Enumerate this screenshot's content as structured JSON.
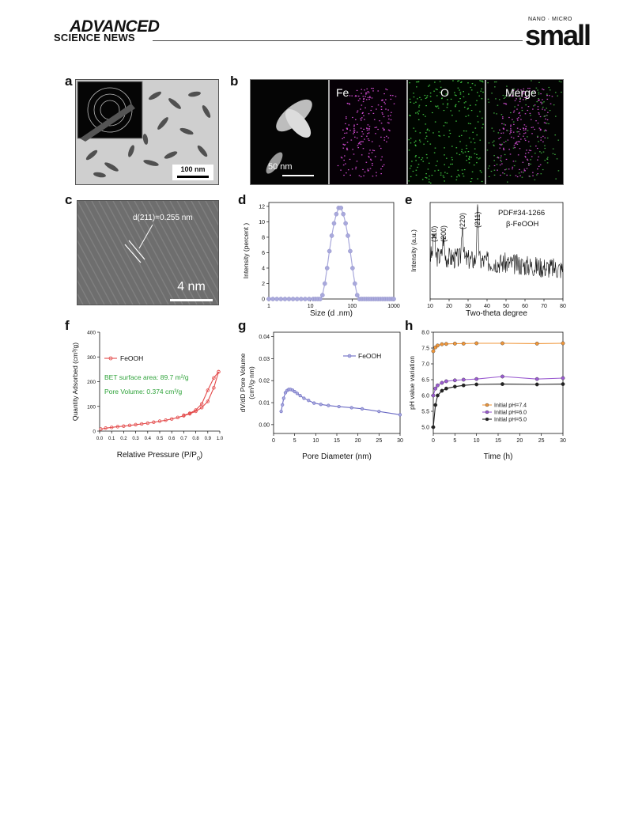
{
  "header": {
    "brand_line1": "ADVANCED",
    "brand_line2": "SCIENCE NEWS",
    "journal_tag": "NANO · MICRO",
    "journal_name": "small"
  },
  "panels": {
    "a": {
      "letter": "a",
      "scale_label": "100 nm"
    },
    "b": {
      "letter": "b",
      "scale_label": "50 nm",
      "tiles": [
        "Fe",
        "O",
        "Merge"
      ]
    },
    "c": {
      "letter": "c",
      "annotation": "d(211)=0.255 nm",
      "scale_label": "4 nm"
    },
    "d": {
      "letter": "d"
    },
    "e": {
      "letter": "e"
    },
    "f": {
      "letter": "f"
    },
    "g": {
      "letter": "g"
    },
    "h": {
      "letter": "h"
    }
  },
  "chart_data": [
    {
      "panel": "d",
      "type": "scatter",
      "xlabel": "Size (d .nm)",
      "ylabel": "Intensity (percent )",
      "xscale": "log",
      "xlim": [
        1,
        1000
      ],
      "ylim": [
        0,
        12.5
      ],
      "xticks": [
        "1",
        "10",
        "100",
        "1000"
      ],
      "yticks": [
        "0",
        "2",
        "4",
        "6",
        "8",
        "10",
        "12"
      ],
      "color": "#a9a9dc",
      "series": [
        {
          "x": [
            1,
            1.25,
            1.56,
            1.95,
            2.44,
            3.05,
            3.81,
            4.77,
            5.96,
            7.45,
            9.31,
            11.6,
            13.2,
            15.0,
            17.1,
            19.4,
            22.1,
            25.1,
            28.5,
            32.4,
            36.8,
            41.8,
            47.5,
            54.0,
            61.4,
            69.8,
            79.3,
            90.1,
            102.4,
            116.4,
            132.3,
            150.3,
            170.9,
            194.2,
            220.7,
            250.8,
            285,
            324,
            368,
            418,
            475,
            540,
            614,
            698,
            793,
            901,
            1000
          ],
          "values": [
            0,
            0,
            0,
            0,
            0,
            0,
            0,
            0,
            0,
            0,
            0,
            0,
            0,
            0,
            0,
            0.5,
            2.0,
            4.0,
            6.2,
            8.2,
            9.8,
            11.0,
            11.8,
            11.8,
            11.0,
            9.8,
            8.2,
            6.2,
            4.0,
            2.0,
            0.5,
            0,
            0,
            0,
            0,
            0,
            0,
            0,
            0,
            0,
            0,
            0,
            0,
            0,
            0,
            0,
            0
          ]
        }
      ]
    },
    {
      "panel": "e",
      "type": "line",
      "xlabel": "Two-theta degree",
      "ylabel": "Intensity (a.u.)",
      "xlim": [
        10,
        80
      ],
      "xticks": [
        "10",
        "20",
        "30",
        "40",
        "50",
        "60",
        "70",
        "80"
      ],
      "peak_labels": [
        "(110)",
        "(200)",
        "(220)",
        "(211)"
      ],
      "peak_positions": [
        12,
        17,
        27,
        35
      ],
      "annotation_lines": [
        "PDF#34-1266",
        "β-FeOOH"
      ],
      "color": "#111111"
    },
    {
      "panel": "f",
      "type": "line",
      "xlabel": "Relative Pressure (P/P",
      "xlabel_sub": "0",
      "xlabel_end": ")",
      "ylabel": "Quantity Adsorbed (cm³/g)",
      "xlim": [
        0,
        1.0
      ],
      "ylim": [
        0,
        400
      ],
      "xticks": [
        "0.0",
        "0.1",
        "0.2",
        "0.3",
        "0.4",
        "0.5",
        "0.6",
        "0.7",
        "0.8",
        "0.9",
        "1.0"
      ],
      "yticks": [
        "0",
        "100",
        "200",
        "300",
        "400"
      ],
      "legend": "FeOOH",
      "notes": [
        "BET surface area: 89.7 m²/g",
        "Pore Volume: 0.374 cm³/g"
      ],
      "color": "#e34a4a",
      "note_color": "#2fa33a",
      "series": [
        {
          "name": "adsorption",
          "x": [
            0.01,
            0.05,
            0.1,
            0.15,
            0.2,
            0.25,
            0.3,
            0.35,
            0.4,
            0.45,
            0.5,
            0.55,
            0.6,
            0.65,
            0.7,
            0.75,
            0.8,
            0.85,
            0.9,
            0.95,
            0.99
          ],
          "values": [
            8,
            12,
            15,
            18,
            20,
            23,
            26,
            29,
            32,
            36,
            40,
            44,
            49,
            55,
            62,
            70,
            80,
            95,
            120,
            175,
            240
          ]
        },
        {
          "name": "desorption",
          "x": [
            0.99,
            0.95,
            0.9,
            0.85,
            0.8,
            0.75,
            0.7
          ],
          "values": [
            240,
            215,
            165,
            110,
            85,
            72,
            64
          ]
        }
      ]
    },
    {
      "panel": "g",
      "type": "line",
      "xlabel": "Pore Diameter (nm)",
      "ylabel": "dV/dD Pore Volume",
      "ylabel2": "(cm³/g·nm)",
      "xlim": [
        0,
        30
      ],
      "ylim": [
        -0.004,
        0.042
      ],
      "xticks": [
        "0",
        "5",
        "10",
        "15",
        "20",
        "25",
        "30"
      ],
      "yticks": [
        "0.00",
        "0.01",
        "0.02",
        "0.03",
        "0.04"
      ],
      "legend": "FeOOH",
      "color": "#6b6bc4",
      "series": [
        {
          "name": "FeOOH",
          "x": [
            1.8,
            2.1,
            2.4,
            2.8,
            3.2,
            3.6,
            4.0,
            4.5,
            5.0,
            5.6,
            6.3,
            7.2,
            8.3,
            9.6,
            11.2,
            13.0,
            15.5,
            18.5,
            21.0,
            25.0,
            30.0
          ],
          "values": [
            0.006,
            0.009,
            0.012,
            0.0145,
            0.0155,
            0.016,
            0.016,
            0.0157,
            0.015,
            0.0142,
            0.0132,
            0.012,
            0.011,
            0.0098,
            0.0092,
            0.0087,
            0.0082,
            0.0077,
            0.0072,
            0.006,
            0.0045
          ]
        }
      ]
    },
    {
      "panel": "h",
      "type": "line",
      "xlabel": "Time (h)",
      "ylabel": "pH value variation",
      "xlim": [
        0,
        30
      ],
      "ylim": [
        4.8,
        8.0
      ],
      "xticks": [
        "0",
        "5",
        "10",
        "15",
        "20",
        "25",
        "30"
      ],
      "yticks": [
        "5.0",
        "5.5",
        "6.0",
        "6.5",
        "7.0",
        "7.5",
        "8.0"
      ],
      "series": [
        {
          "name": "Initial pH=7.4",
          "color": "#f0973b",
          "x": [
            0,
            0.5,
            1,
            2,
            3,
            5,
            7,
            10,
            16,
            24,
            30
          ],
          "values": [
            7.4,
            7.52,
            7.58,
            7.62,
            7.63,
            7.64,
            7.64,
            7.65,
            7.65,
            7.64,
            7.65
          ]
        },
        {
          "name": "Initial pH=6.0",
          "color": "#9a5bd0",
          "x": [
            0,
            0.5,
            1,
            2,
            3,
            5,
            7,
            10,
            16,
            24,
            30
          ],
          "values": [
            6.0,
            6.22,
            6.32,
            6.4,
            6.45,
            6.48,
            6.5,
            6.52,
            6.6,
            6.52,
            6.55
          ]
        },
        {
          "name": "Initial pH=5.0",
          "color": "#222222",
          "x": [
            0,
            0.5,
            1,
            2,
            3,
            5,
            7,
            10,
            16,
            24,
            30
          ],
          "values": [
            5.0,
            5.7,
            6.0,
            6.15,
            6.22,
            6.28,
            6.32,
            6.35,
            6.36,
            6.35,
            6.36
          ]
        }
      ]
    }
  ]
}
